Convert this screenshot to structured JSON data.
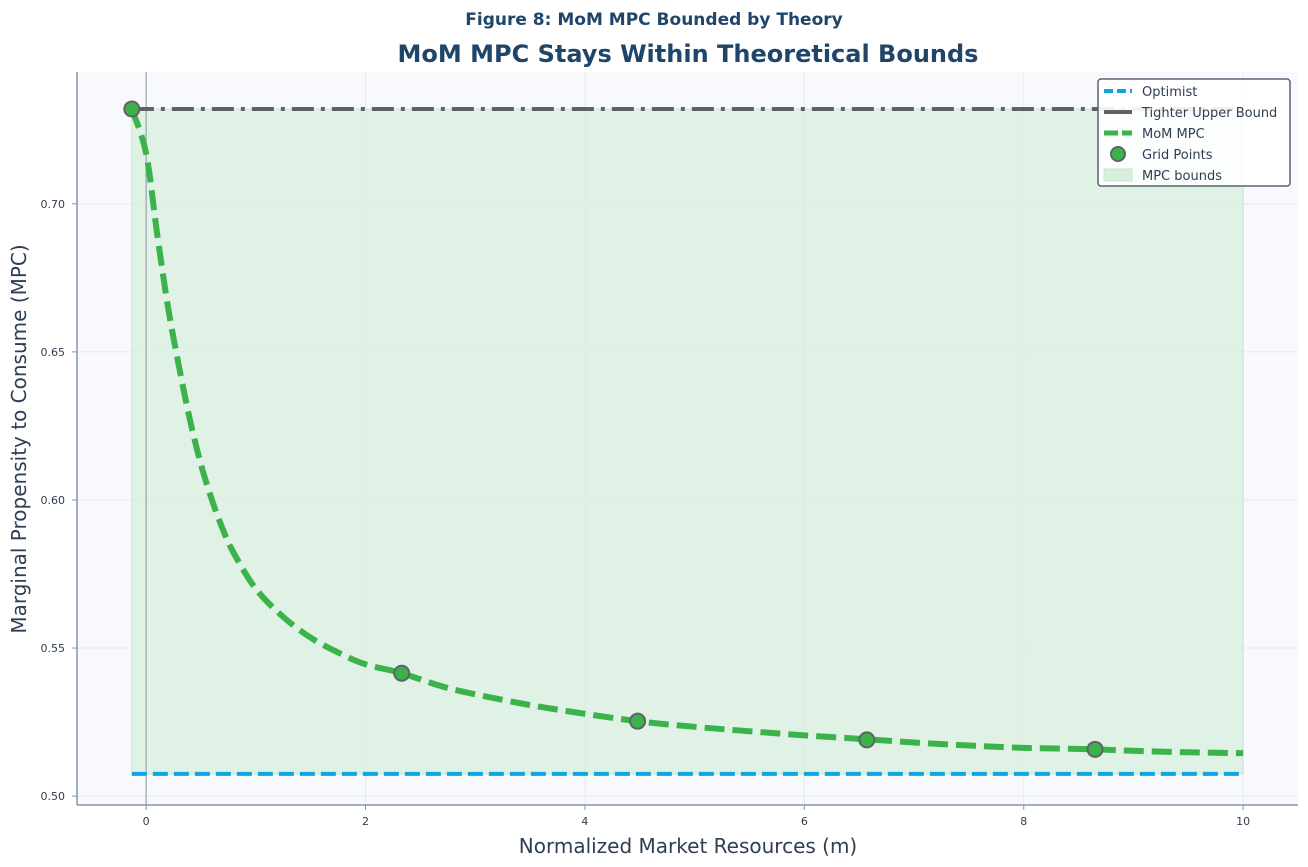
{
  "chart_data": {
    "type": "line",
    "suptitle": "Figure 8: MoM MPC Bounded by Theory",
    "title": "MoM MPC Stays Within Theoretical Bounds",
    "xlabel": "Normalized Market Resources (m)",
    "ylabel": "Marginal Propensity to Consume (MPC)",
    "xlim": [
      -0.63,
      10.5
    ],
    "ylim": [
      0.497,
      0.7445
    ],
    "xticks": [
      0,
      2,
      4,
      6,
      8,
      10
    ],
    "xtick_labels": [
      "0",
      "2",
      "4",
      "6",
      "8",
      "10"
    ],
    "yticks": [
      0.5,
      0.55,
      0.6,
      0.65,
      0.7
    ],
    "ytick_labels": [
      "0.50",
      "0.55",
      "0.60",
      "0.65",
      "0.70"
    ],
    "grid": true,
    "legend_position": "top-right",
    "series": [
      {
        "name": "Optimist",
        "style": "dashed",
        "color": "#0ea5e0",
        "x": [
          -0.13,
          10.0
        ],
        "y": [
          0.5075,
          0.5075
        ]
      },
      {
        "name": "Tighter Upper Bound",
        "style": "dashdot",
        "color": "#5f6368",
        "x": [
          -0.13,
          10.0
        ],
        "y": [
          0.732,
          0.732
        ]
      },
      {
        "name": "MoM MPC",
        "style": "dashed",
        "color": "#3cb34a",
        "x": [
          -0.13,
          0.0,
          0.1,
          0.2,
          0.3,
          0.4,
          0.5,
          0.6,
          0.7,
          0.8,
          1.0,
          1.25,
          1.5,
          1.75,
          2.0,
          2.33,
          2.75,
          3.25,
          3.75,
          4.48,
          5.0,
          5.5,
          6.0,
          6.57,
          7.0,
          7.5,
          8.0,
          8.65,
          9.0,
          9.5,
          10.0
        ],
        "y": [
          0.732,
          0.717,
          0.69,
          0.665,
          0.645,
          0.627,
          0.612,
          0.6,
          0.59,
          0.582,
          0.57,
          0.5605,
          0.5535,
          0.5485,
          0.5445,
          0.5415,
          0.5365,
          0.5325,
          0.5292,
          0.5253,
          0.5234,
          0.5219,
          0.5205,
          0.5192,
          0.5181,
          0.5171,
          0.5163,
          0.5158,
          0.5153,
          0.5148,
          0.5145
        ]
      },
      {
        "name": "Grid Points",
        "style": "markers",
        "color": "#3cb34a",
        "x": [
          -0.13,
          2.33,
          4.48,
          6.57,
          8.65
        ],
        "y": [
          0.732,
          0.5415,
          0.5253,
          0.519,
          0.5158
        ]
      },
      {
        "name": "MPC bounds",
        "style": "fill",
        "color": "#d8eedf",
        "x": [
          -0.13,
          10.0
        ],
        "y_lower": [
          0.5075,
          0.5075
        ],
        "y_upper": [
          0.732,
          0.732
        ]
      }
    ],
    "vline_x": 0
  }
}
